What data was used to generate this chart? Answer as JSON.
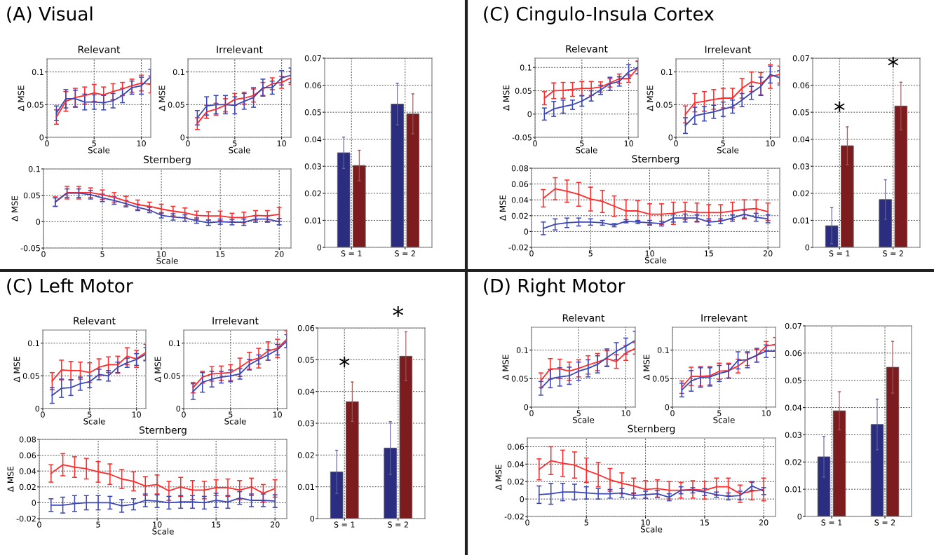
{
  "chart_data": [
    {
      "type": "line",
      "title": "Relevant",
      "xlabel": "Scale",
      "ylabel": "Δ MSE",
      "annotations": [
        "(A) Visual"
      ],
      "x": [
        1,
        2,
        3,
        4,
        5,
        6,
        7,
        8,
        9,
        10,
        11
      ],
      "xlim": [
        0,
        11
      ],
      "xticks": [
        0,
        5,
        10
      ],
      "ylim": [
        0,
        0.12
      ],
      "yticks": [
        0,
        0.05,
        0.1
      ],
      "grid": true,
      "series": [
        {
          "color": "#ff2a2a",
          "values": [
            0.031,
            0.055,
            0.061,
            0.064,
            0.068,
            0.065,
            0.07,
            0.074,
            0.079,
            0.083,
            0.081
          ],
          "errors": [
            0.011,
            0.015,
            0.014,
            0.013,
            0.013,
            0.012,
            0.012,
            0.01,
            0.01,
            0.012,
            0.013
          ]
        },
        {
          "color": "#3b47b4",
          "values": [
            0.037,
            0.059,
            0.059,
            0.054,
            0.054,
            0.053,
            0.056,
            0.064,
            0.076,
            0.079,
            0.093
          ],
          "errors": [
            0.011,
            0.014,
            0.013,
            0.012,
            0.011,
            0.011,
            0.011,
            0.011,
            0.01,
            0.013,
            0.011
          ]
        }
      ]
    },
    {
      "type": "line",
      "title": "Irrelevant",
      "xlabel": "Scale",
      "ylabel": "Δ MSE",
      "x": [
        1,
        2,
        3,
        4,
        5,
        6,
        7,
        8,
        9,
        10,
        11
      ],
      "xlim": [
        0,
        11
      ],
      "xticks": [
        0,
        5,
        10
      ],
      "ylim": [
        0,
        0.12
      ],
      "yticks": [
        0,
        0.05,
        0.1
      ],
      "grid": true,
      "series": [
        {
          "color": "#ff2a2a",
          "values": [
            0.021,
            0.039,
            0.043,
            0.049,
            0.058,
            0.06,
            0.064,
            0.074,
            0.082,
            0.084,
            0.091
          ],
          "errors": [
            0.009,
            0.01,
            0.009,
            0.01,
            0.009,
            0.009,
            0.01,
            0.01,
            0.009,
            0.009,
            0.01
          ]
        },
        {
          "color": "#3b47b4",
          "values": [
            0.03,
            0.048,
            0.05,
            0.05,
            0.049,
            0.055,
            0.061,
            0.076,
            0.076,
            0.091,
            0.095
          ],
          "errors": [
            0.011,
            0.014,
            0.014,
            0.014,
            0.013,
            0.012,
            0.015,
            0.013,
            0.01,
            0.011,
            0.011
          ]
        }
      ]
    },
    {
      "type": "line",
      "title": "Sternberg",
      "xlabel": "Scale",
      "ylabel": "Δ MSE",
      "x": [
        1,
        2,
        3,
        4,
        5,
        6,
        7,
        8,
        9,
        10,
        11,
        12,
        13,
        14,
        15,
        16,
        17,
        18,
        19,
        20
      ],
      "xlim": [
        0,
        21
      ],
      "xticks": [
        0,
        5,
        10,
        15,
        20
      ],
      "ylim": [
        -0.05,
        0.1
      ],
      "yticks": [
        -0.05,
        0,
        0.05,
        0.1
      ],
      "grid": true,
      "series": [
        {
          "color": "#ff2a2a",
          "values": [
            0.038,
            0.055,
            0.055,
            0.055,
            0.051,
            0.046,
            0.039,
            0.032,
            0.029,
            0.024,
            0.02,
            0.017,
            0.012,
            0.011,
            0.011,
            0.008,
            0.008,
            0.012,
            0.011,
            0.014
          ],
          "errors": [
            0.009,
            0.012,
            0.012,
            0.009,
            0.009,
            0.009,
            0.009,
            0.009,
            0.008,
            0.009,
            0.009,
            0.009,
            0.008,
            0.008,
            0.009,
            0.008,
            0.01,
            0.009,
            0.01,
            0.013
          ]
        },
        {
          "color": "#3b47b4",
          "values": [
            0.037,
            0.054,
            0.054,
            0.051,
            0.045,
            0.04,
            0.034,
            0.027,
            0.022,
            0.012,
            0.009,
            0.007,
            0.002,
            -0.002,
            0.0,
            -0.001,
            -0.001,
            0.005,
            0.005,
            0.0
          ],
          "errors": [
            0.008,
            0.008,
            0.008,
            0.008,
            0.007,
            0.007,
            0.006,
            0.006,
            0.005,
            0.005,
            0.006,
            0.006,
            0.005,
            0.005,
            0.005,
            0.005,
            0.006,
            0.006,
            0.006,
            0.006
          ]
        }
      ]
    },
    {
      "type": "bar",
      "categories": [
        "S = 1",
        "S = 2"
      ],
      "ylim": [
        0,
        0.07
      ],
      "yticks": [
        0,
        0.01,
        0.02,
        0.03,
        0.04,
        0.05,
        0.06,
        0.07
      ],
      "grid": true,
      "series": [
        {
          "color": "#2b2d80",
          "values": [
            0.035,
            0.053
          ],
          "errors": [
            0.0058,
            0.0077
          ]
        },
        {
          "color": "#7d1c1e",
          "values": [
            0.0303,
            0.0494
          ],
          "errors": [
            0.0056,
            0.0074
          ]
        }
      ]
    },
    {
      "type": "line",
      "title": "Relevant",
      "xlabel": "Scale",
      "ylabel": "Δ MSE",
      "annotations": [
        "(C) Cingulo-Insula Cortex"
      ],
      "x": [
        1,
        2,
        3,
        4,
        5,
        6,
        7,
        8,
        9,
        10,
        11
      ],
      "xlim": [
        0,
        11
      ],
      "xticks": [
        0,
        5,
        10
      ],
      "ylim": [
        -0.05,
        0.12
      ],
      "yticks": [
        -0.05,
        0,
        0.05,
        0.1
      ],
      "grid": true,
      "series": [
        {
          "color": "#ff2a2a",
          "values": [
            0.034,
            0.05,
            0.051,
            0.053,
            0.055,
            0.055,
            0.058,
            0.067,
            0.076,
            0.076,
            0.1
          ],
          "errors": [
            0.014,
            0.017,
            0.017,
            0.015,
            0.015,
            0.015,
            0.011,
            0.009,
            0.01,
            0.008,
            0.014
          ]
        },
        {
          "color": "#3b47b4",
          "values": [
            0.0,
            0.011,
            0.016,
            0.02,
            0.028,
            0.039,
            0.052,
            0.065,
            0.07,
            0.091,
            0.1
          ],
          "errors": [
            0.013,
            0.016,
            0.014,
            0.01,
            0.011,
            0.011,
            0.01,
            0.014,
            0.01,
            0.015,
            0.013
          ]
        }
      ]
    },
    {
      "type": "line",
      "title": "Irrelevant",
      "xlabel": "Scale",
      "ylabel": "Δ MSE",
      "x": [
        1,
        2,
        3,
        4,
        5,
        6,
        7,
        8,
        9,
        10,
        11
      ],
      "xlim": [
        0,
        11
      ],
      "xticks": [
        0,
        5,
        10
      ],
      "ylim": [
        0,
        0.12
      ],
      "yticks": [
        0,
        0.05,
        0.1
      ],
      "grid": true,
      "series": [
        {
          "color": "#ff2a2a",
          "values": [
            0.035,
            0.053,
            0.055,
            0.058,
            0.06,
            0.06,
            0.075,
            0.085,
            0.082,
            0.093,
            0.096
          ],
          "errors": [
            0.013,
            0.014,
            0.015,
            0.015,
            0.015,
            0.015,
            0.015,
            0.015,
            0.017,
            0.018,
            0.013
          ]
        },
        {
          "color": "#3b47b4",
          "values": [
            0.018,
            0.033,
            0.036,
            0.039,
            0.043,
            0.047,
            0.057,
            0.068,
            0.078,
            0.096,
            0.091
          ],
          "errors": [
            0.012,
            0.013,
            0.011,
            0.01,
            0.011,
            0.01,
            0.01,
            0.01,
            0.014,
            0.013,
            0.011
          ]
        }
      ]
    },
    {
      "type": "line",
      "title": "Sternberg",
      "xlabel": "Scale",
      "ylabel": "Δ MSE",
      "x": [
        1,
        2,
        3,
        4,
        5,
        6,
        7,
        8,
        9,
        10,
        11,
        12,
        13,
        14,
        15,
        16,
        17,
        18,
        19,
        20
      ],
      "xlim": [
        0,
        21
      ],
      "xticks": [
        0,
        5,
        10,
        15,
        20
      ],
      "ylim": [
        -0.02,
        0.08
      ],
      "yticks": [
        -0.02,
        0,
        0.02,
        0.04,
        0.06,
        0.08
      ],
      "grid": true,
      "series": [
        {
          "color": "#ff2a2a",
          "values": [
            0.042,
            0.054,
            0.051,
            0.047,
            0.041,
            0.038,
            0.032,
            0.026,
            0.026,
            0.022,
            0.022,
            0.023,
            0.026,
            0.024,
            0.024,
            0.024,
            0.026,
            0.028,
            0.029,
            0.025
          ],
          "errors": [
            0.011,
            0.014,
            0.014,
            0.015,
            0.015,
            0.014,
            0.013,
            0.014,
            0.013,
            0.013,
            0.013,
            0.014,
            0.011,
            0.012,
            0.01,
            0.01,
            0.011,
            0.012,
            0.011,
            0.011
          ]
        },
        {
          "color": "#3b47b4",
          "values": [
            0.004,
            0.009,
            0.011,
            0.012,
            0.012,
            0.011,
            0.008,
            0.013,
            0.012,
            0.011,
            0.01,
            0.017,
            0.017,
            0.017,
            0.012,
            0.013,
            0.017,
            0.022,
            0.018,
            0.016
          ],
          "errors": [
            0.008,
            0.007,
            0.006,
            0.005,
            0.004,
            0.003,
            0.002,
            0.002,
            0.002,
            0.003,
            0.003,
            0.005,
            0.005,
            0.004,
            0.004,
            0.003,
            0.004,
            0.005,
            0.005,
            0.005
          ]
        }
      ]
    },
    {
      "type": "bar",
      "categories": [
        "S = 1",
        "S = 2"
      ],
      "ylim": [
        0,
        0.07
      ],
      "yticks": [
        0,
        0.01,
        0.02,
        0.03,
        0.04,
        0.05,
        0.06,
        0.07
      ],
      "grid": true,
      "annotations": [
        "*",
        "*"
      ],
      "series": [
        {
          "color": "#2b2d80",
          "values": [
            0.008,
            0.0177
          ],
          "errors": [
            0.0067,
            0.0073
          ]
        },
        {
          "color": "#7d1c1e",
          "values": [
            0.0376,
            0.0523
          ],
          "errors": [
            0.007,
            0.0088
          ]
        }
      ]
    },
    {
      "type": "line",
      "title": "Relevant",
      "xlabel": "Scale",
      "ylabel": "Δ MSE",
      "annotations": [
        "(C) Left Motor"
      ],
      "x": [
        1,
        2,
        3,
        4,
        5,
        6,
        7,
        8,
        9,
        10,
        11
      ],
      "xlim": [
        0,
        11
      ],
      "xticks": [
        0,
        5,
        10
      ],
      "ylim": [
        0,
        0.12
      ],
      "yticks": [
        0,
        0.05,
        0.1
      ],
      "grid": true,
      "series": [
        {
          "color": "#ff2a2a",
          "values": [
            0.042,
            0.059,
            0.058,
            0.058,
            0.055,
            0.063,
            0.067,
            0.067,
            0.08,
            0.076,
            0.086
          ],
          "errors": [
            0.013,
            0.015,
            0.014,
            0.013,
            0.015,
            0.013,
            0.012,
            0.013,
            0.013,
            0.013,
            0.012
          ]
        },
        {
          "color": "#3b47b4",
          "values": [
            0.02,
            0.031,
            0.032,
            0.038,
            0.041,
            0.052,
            0.05,
            0.063,
            0.07,
            0.075,
            0.083
          ],
          "errors": [
            0.012,
            0.014,
            0.012,
            0.01,
            0.009,
            0.008,
            0.008,
            0.008,
            0.007,
            0.009,
            0.01
          ]
        }
      ]
    },
    {
      "type": "line",
      "title": "Irrelevant",
      "xlabel": "Scale",
      "ylabel": "Δ MSE",
      "x": [
        1,
        2,
        3,
        4,
        5,
        6,
        7,
        8,
        9,
        10,
        11
      ],
      "xlim": [
        0,
        11
      ],
      "xticks": [
        0,
        5,
        10
      ],
      "ylim": [
        0,
        0.12
      ],
      "yticks": [
        0,
        0.05,
        0.1
      ],
      "grid": true,
      "series": [
        {
          "color": "#ff2a2a",
          "values": [
            0.032,
            0.048,
            0.053,
            0.054,
            0.055,
            0.063,
            0.073,
            0.077,
            0.088,
            0.092,
            0.106
          ],
          "errors": [
            0.008,
            0.009,
            0.011,
            0.011,
            0.012,
            0.014,
            0.013,
            0.015,
            0.014,
            0.014,
            0.013
          ]
        },
        {
          "color": "#3b47b4",
          "values": [
            0.026,
            0.04,
            0.045,
            0.048,
            0.05,
            0.053,
            0.067,
            0.075,
            0.082,
            0.09,
            0.103
          ],
          "errors": [
            0.012,
            0.015,
            0.012,
            0.009,
            0.009,
            0.008,
            0.008,
            0.007,
            0.008,
            0.008,
            0.01
          ]
        }
      ]
    },
    {
      "type": "line",
      "title": "Sternberg",
      "xlabel": "Scale",
      "ylabel": "Δ MSE",
      "x": [
        1,
        2,
        3,
        4,
        5,
        6,
        7,
        8,
        9,
        10,
        11,
        12,
        13,
        14,
        15,
        16,
        17,
        18,
        19,
        20
      ],
      "xlim": [
        0,
        21
      ],
      "xticks": [
        0,
        5,
        10,
        15,
        20
      ],
      "ylim": [
        -0.02,
        0.08
      ],
      "yticks": [
        -0.02,
        0,
        0.02,
        0.04,
        0.06,
        0.08
      ],
      "grid": true,
      "series": [
        {
          "color": "#ff2a2a",
          "values": [
            0.037,
            0.048,
            0.045,
            0.043,
            0.039,
            0.036,
            0.03,
            0.027,
            0.021,
            0.023,
            0.015,
            0.02,
            0.016,
            0.016,
            0.019,
            0.019,
            0.016,
            0.02,
            0.012,
            0.018
          ],
          "errors": [
            0.011,
            0.014,
            0.013,
            0.013,
            0.013,
            0.013,
            0.012,
            0.012,
            0.012,
            0.012,
            0.012,
            0.012,
            0.012,
            0.011,
            0.01,
            0.011,
            0.012,
            0.011,
            0.011,
            0.011
          ]
        },
        {
          "color": "#3b47b4",
          "values": [
            -0.003,
            -0.003,
            -0.001,
            0.0,
            0.0,
            0.0,
            -0.004,
            -0.002,
            0.003,
            0.002,
            0.0,
            0.001,
            0.001,
            0.0,
            0.003,
            0.001,
            0.006,
            0.003,
            0.003,
            0.002
          ],
          "errors": [
            0.008,
            0.01,
            0.01,
            0.009,
            0.009,
            0.008,
            0.008,
            0.007,
            0.008,
            0.008,
            0.008,
            0.008,
            0.008,
            0.008,
            0.009,
            0.008,
            0.008,
            0.008,
            0.008,
            0.008
          ]
        }
      ]
    },
    {
      "type": "bar",
      "categories": [
        "S = 1",
        "S = 2"
      ],
      "ylim": [
        0,
        0.06
      ],
      "yticks": [
        0,
        0.01,
        0.02,
        0.03,
        0.04,
        0.05,
        0.06
      ],
      "grid": true,
      "annotations": [
        "*",
        "*"
      ],
      "series": [
        {
          "color": "#2b2d80",
          "values": [
            0.0147,
            0.0222
          ],
          "errors": [
            0.0068,
            0.0083
          ]
        },
        {
          "color": "#7d1c1e",
          "values": [
            0.0368,
            0.0511
          ],
          "errors": [
            0.0062,
            0.0077
          ]
        }
      ]
    },
    {
      "type": "line",
      "title": "Relevant",
      "xlabel": "Scale",
      "ylabel": "Δ MSE",
      "annotations": [
        "(D) Right Motor"
      ],
      "x": [
        1,
        2,
        3,
        4,
        5,
        6,
        7,
        8,
        9,
        10,
        11
      ],
      "xlim": [
        0,
        11
      ],
      "xticks": [
        0,
        5,
        10
      ],
      "ylim": [
        0,
        0.14
      ],
      "yticks": [
        0,
        0.05,
        0.1
      ],
      "grid": true,
      "series": [
        {
          "color": "#ff2a2a",
          "values": [
            0.047,
            0.067,
            0.067,
            0.063,
            0.068,
            0.074,
            0.079,
            0.085,
            0.08,
            0.095,
            0.103
          ],
          "errors": [
            0.013,
            0.018,
            0.017,
            0.016,
            0.015,
            0.016,
            0.015,
            0.014,
            0.012,
            0.013,
            0.01
          ]
        },
        {
          "color": "#3b47b4",
          "values": [
            0.033,
            0.05,
            0.053,
            0.055,
            0.063,
            0.068,
            0.075,
            0.087,
            0.098,
            0.107,
            0.117
          ],
          "errors": [
            0.012,
            0.016,
            0.016,
            0.015,
            0.016,
            0.015,
            0.015,
            0.015,
            0.015,
            0.014,
            0.016
          ]
        }
      ]
    },
    {
      "type": "line",
      "title": "Irrelevant",
      "xlabel": "Scale",
      "ylabel": "Δ MSE",
      "x": [
        1,
        2,
        3,
        4,
        5,
        6,
        7,
        8,
        9,
        10,
        11
      ],
      "xlim": [
        0,
        11
      ],
      "xticks": [
        0,
        5,
        10
      ],
      "ylim": [
        0,
        0.14
      ],
      "yticks": [
        0,
        0.05,
        0.1
      ],
      "grid": true,
      "series": [
        {
          "color": "#ff2a2a",
          "values": [
            0.035,
            0.054,
            0.054,
            0.055,
            0.063,
            0.064,
            0.072,
            0.084,
            0.09,
            0.107,
            0.11
          ],
          "errors": [
            0.011,
            0.016,
            0.017,
            0.016,
            0.014,
            0.013,
            0.012,
            0.011,
            0.011,
            0.008,
            0.012
          ]
        },
        {
          "color": "#3b47b4",
          "values": [
            0.03,
            0.046,
            0.052,
            0.053,
            0.059,
            0.063,
            0.082,
            0.083,
            0.091,
            0.098,
            0.098
          ],
          "errors": [
            0.012,
            0.018,
            0.017,
            0.016,
            0.014,
            0.012,
            0.015,
            0.014,
            0.012,
            0.011,
            0.011
          ]
        }
      ]
    },
    {
      "type": "line",
      "title": "Sternberg",
      "xlabel": "Scale",
      "ylabel": "Δ MSE",
      "x": [
        1,
        2,
        3,
        4,
        5,
        6,
        7,
        8,
        9,
        10,
        11,
        12,
        13,
        14,
        15,
        16,
        17,
        18,
        19,
        20
      ],
      "xlim": [
        0,
        21
      ],
      "xticks": [
        0,
        5,
        10,
        15,
        20
      ],
      "ylim": [
        -0.02,
        0.07
      ],
      "yticks": [
        -0.02,
        0,
        0.02,
        0.04,
        0.06
      ],
      "grid": true,
      "series": [
        {
          "color": "#ff2a2a",
          "values": [
            0.034,
            0.044,
            0.041,
            0.039,
            0.033,
            0.028,
            0.022,
            0.018,
            0.015,
            0.011,
            0.012,
            0.01,
            0.01,
            0.011,
            0.01,
            0.014,
            0.014,
            0.006,
            0.009,
            0.011
          ],
          "errors": [
            0.012,
            0.016,
            0.015,
            0.015,
            0.014,
            0.014,
            0.013,
            0.012,
            0.009,
            0.01,
            0.01,
            0.01,
            0.009,
            0.01,
            0.01,
            0.01,
            0.01,
            0.01,
            0.01,
            0.013
          ]
        },
        {
          "color": "#3b47b4",
          "values": [
            0.005,
            0.006,
            0.008,
            0.008,
            0.007,
            0.006,
            0.006,
            0.007,
            0.004,
            0.005,
            0.006,
            0.002,
            0.01,
            0.01,
            0.008,
            0.005,
            0.003,
            0.004,
            0.015,
            0.009
          ],
          "errors": [
            0.01,
            0.012,
            0.01,
            0.009,
            0.007,
            0.006,
            0.005,
            0.005,
            0.003,
            0.004,
            0.004,
            0.004,
            0.004,
            0.003,
            0.004,
            0.003,
            0.004,
            0.005,
            0.005,
            0.004
          ]
        }
      ]
    },
    {
      "type": "bar",
      "categories": [
        "S = 1",
        "S = 2"
      ],
      "ylim": [
        0,
        0.07
      ],
      "yticks": [
        0,
        0.01,
        0.02,
        0.03,
        0.04,
        0.05,
        0.06,
        0.07
      ],
      "grid": true,
      "series": [
        {
          "color": "#2b2d80",
          "values": [
            0.0219,
            0.0338
          ],
          "errors": [
            0.0075,
            0.0093
          ]
        },
        {
          "color": "#7d1c1e",
          "values": [
            0.0388,
            0.0548
          ],
          "errors": [
            0.007,
            0.0095
          ]
        }
      ]
    }
  ]
}
